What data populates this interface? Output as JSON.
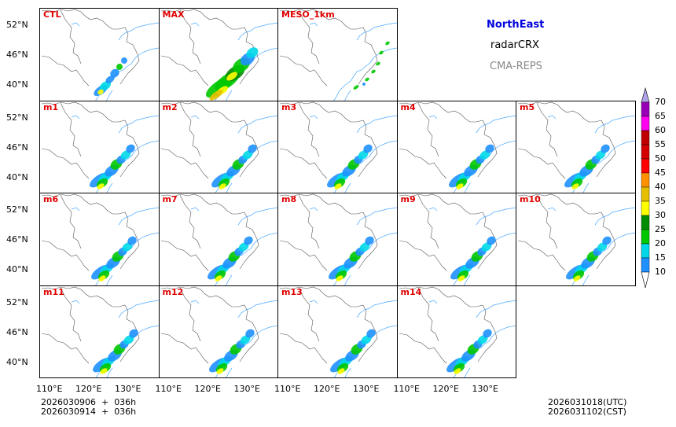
{
  "panels_row1": [
    {
      "label": "CTL",
      "style": "sparse"
    },
    {
      "label": "MAX",
      "style": "max"
    },
    {
      "label": "MESO_1km",
      "style": "meso"
    }
  ],
  "panels_row2": [
    {
      "label": "m1"
    },
    {
      "label": "m2"
    },
    {
      "label": "m3"
    },
    {
      "label": "m4"
    },
    {
      "label": "m5"
    }
  ],
  "panels_row3": [
    {
      "label": "m6"
    },
    {
      "label": "m7"
    },
    {
      "label": "m8"
    },
    {
      "label": "m9"
    },
    {
      "label": "m10"
    }
  ],
  "panels_row4": [
    {
      "label": "m11"
    },
    {
      "label": "m12"
    },
    {
      "label": "m13"
    },
    {
      "label": "m14"
    }
  ],
  "lat_ticks": [
    "52°N",
    "46°N",
    "40°N"
  ],
  "lon_ticks": [
    "110°E",
    "120°E",
    "130°E"
  ],
  "legend": {
    "region": "NorthEast",
    "variable": "radarCRX",
    "model": "CMA-REPS"
  },
  "colorbar": {
    "labels": [
      "70",
      "65",
      "60",
      "55",
      "50",
      "45",
      "40",
      "35",
      "30",
      "25",
      "20",
      "15",
      "10"
    ],
    "colors": [
      "#1e90ff",
      "#00d8e8",
      "#00c800",
      "#008c00",
      "#ffff00",
      "#e6c000",
      "#ff9000",
      "#ff0000",
      "#d40000",
      "#c00000",
      "#ff00f0",
      "#9800b8",
      "#b0a0e8"
    ]
  },
  "init_times": {
    "line1": "2026030906  +  036h",
    "line2": "2026030914  +  036h"
  },
  "valid_times": {
    "utc": "2026031018(UTC)",
    "cst": "2026031102(CST)"
  }
}
